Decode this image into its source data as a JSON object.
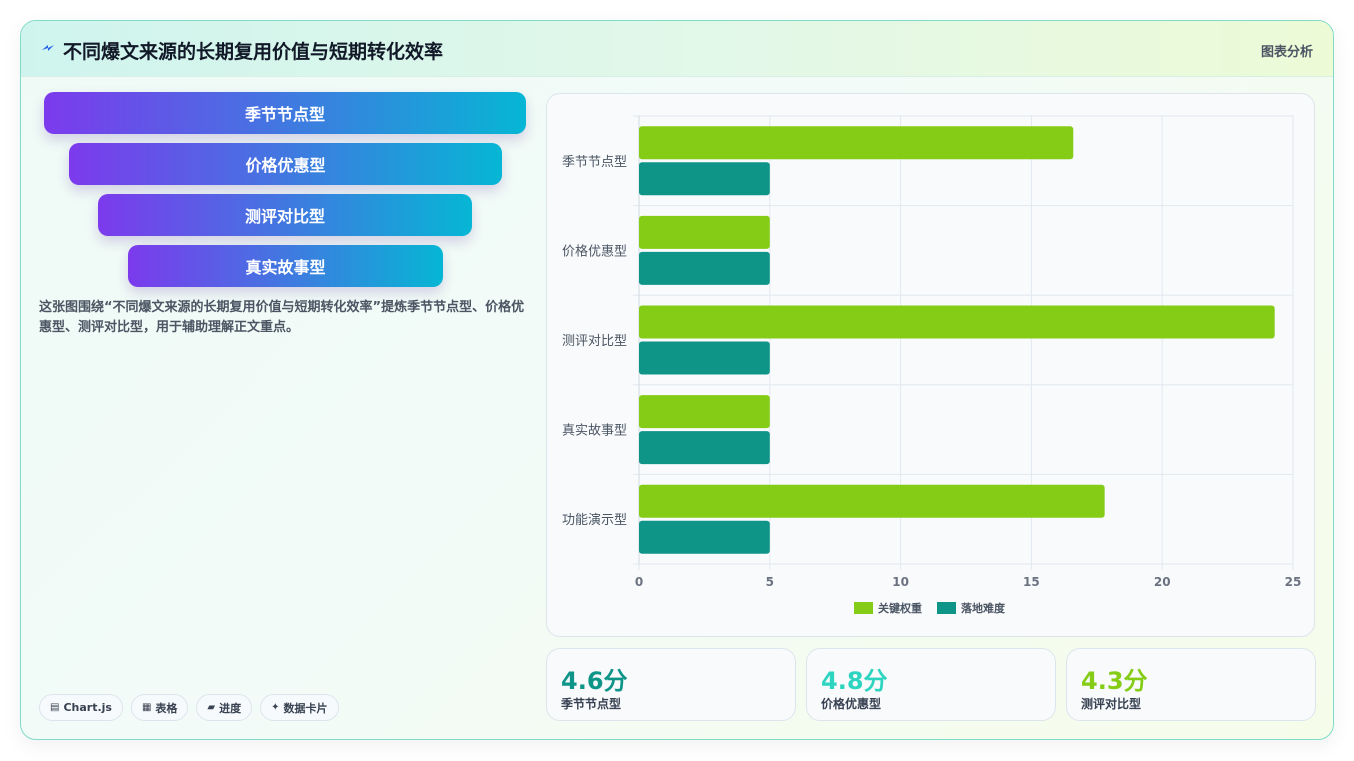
{
  "header": {
    "title": "不同爆文来源的长期复用价值与短期转化效率",
    "tag": "图表分析"
  },
  "funnel": {
    "items": [
      {
        "label": "季节节点型"
      },
      {
        "label": "价格优惠型"
      },
      {
        "label": "测评对比型"
      },
      {
        "label": "真实故事型"
      }
    ]
  },
  "description": "这张图围绕“不同爆文来源的长期复用价值与短期转化效率”提炼季节节点型、价格优惠型、测评对比型，用于辅助理解正文重点。",
  "chips": [
    {
      "icon": "chart-icon",
      "glyph": "▤",
      "label": "Chart.js"
    },
    {
      "icon": "table-icon",
      "glyph": "▦",
      "label": "表格"
    },
    {
      "icon": "progress-icon",
      "glyph": "▰",
      "label": "进度"
    },
    {
      "icon": "sparkle-icon",
      "glyph": "✦",
      "label": "数据卡片"
    }
  ],
  "stats": [
    {
      "value": "4.6分",
      "label": "季节节点型",
      "color": "#0f9488"
    },
    {
      "value": "4.8分",
      "label": "价格优惠型",
      "color": "#2dd4bf"
    },
    {
      "value": "4.3分",
      "label": "测评对比型",
      "color": "#84cc16"
    }
  ],
  "chart_data": {
    "type": "bar",
    "orientation": "horizontal",
    "categories": [
      "季节节点型",
      "价格优惠型",
      "测评对比型",
      "真实故事型",
      "功能演示型"
    ],
    "series": [
      {
        "name": "关键权重",
        "values": [
          16.6,
          5,
          24.3,
          5,
          17.8
        ],
        "color": "#84cc16"
      },
      {
        "name": "落地难度",
        "values": [
          5,
          5,
          5,
          5,
          5
        ],
        "color": "#0f9488"
      }
    ],
    "xlim": [
      0,
      25
    ],
    "xticks": [
      0,
      5,
      10,
      15,
      20,
      25
    ],
    "grid": true,
    "legend": "bottom"
  }
}
